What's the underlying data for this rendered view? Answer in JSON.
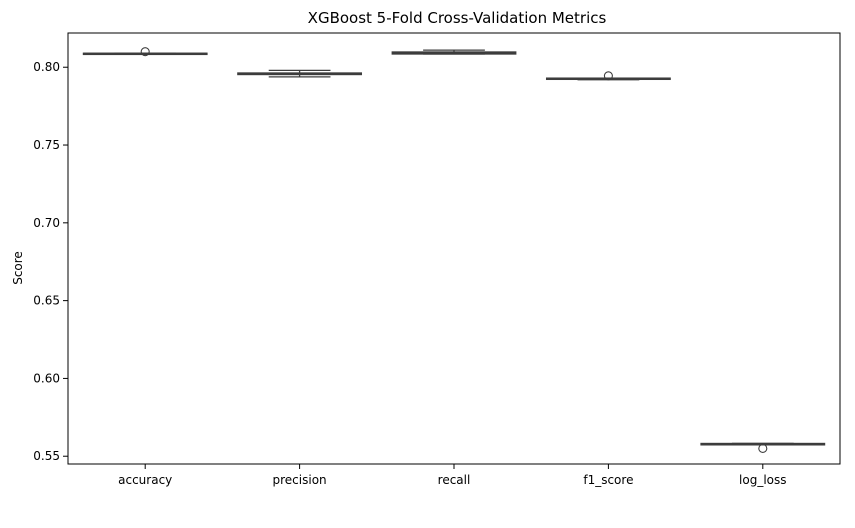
{
  "chart_data": {
    "type": "box",
    "title": "XGBoost 5-Fold Cross-Validation Metrics",
    "xlabel": "",
    "ylabel": "Score",
    "ylim": [
      0.545,
      0.822
    ],
    "yticks": [
      "0.55",
      "0.60",
      "0.65",
      "0.70",
      "0.75",
      "0.80"
    ],
    "categories": [
      "accuracy",
      "precision",
      "recall",
      "f1_score",
      "log_loss"
    ],
    "boxes": [
      {
        "category": "accuracy",
        "whisker_low": 0.8083,
        "q1": 0.8083,
        "median": 0.8088,
        "q3": 0.809,
        "whisker_high": 0.809,
        "outliers": [
          0.81
        ]
      },
      {
        "category": "precision",
        "whisker_low": 0.7938,
        "q1": 0.7953,
        "median": 0.7957,
        "q3": 0.7963,
        "whisker_high": 0.798,
        "outliers": []
      },
      {
        "category": "recall",
        "whisker_low": 0.8085,
        "q1": 0.8085,
        "median": 0.8092,
        "q3": 0.8098,
        "whisker_high": 0.811,
        "outliers": []
      },
      {
        "category": "f1_score",
        "whisker_low": 0.792,
        "q1": 0.7922,
        "median": 0.7926,
        "q3": 0.793,
        "whisker_high": 0.793,
        "outliers": [
          0.7945
        ]
      },
      {
        "category": "log_loss",
        "whisker_low": 0.5573,
        "q1": 0.5573,
        "median": 0.5576,
        "q3": 0.5582,
        "whisker_high": 0.5582,
        "outliers": [
          0.555
        ]
      }
    ],
    "grid": false,
    "box_fill": "#ffffff",
    "line_color": "#3d3d3d"
  }
}
